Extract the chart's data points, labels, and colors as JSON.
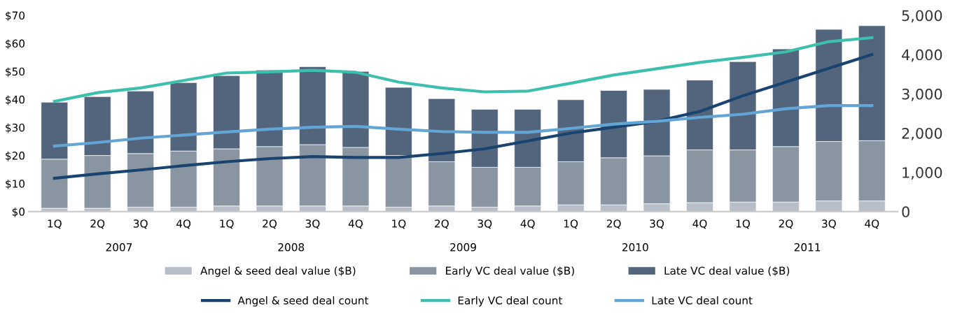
{
  "chart_data": {
    "type": "bar",
    "stacked": true,
    "categories": [
      "1Q",
      "2Q",
      "3Q",
      "4Q",
      "1Q",
      "2Q",
      "3Q",
      "4Q",
      "1Q",
      "2Q",
      "3Q",
      "4Q",
      "1Q",
      "2Q",
      "3Q",
      "4Q",
      "1Q",
      "2Q",
      "3Q",
      "4Q"
    ],
    "annotations": [
      "2007",
      "2008",
      "2009",
      "2010",
      "2011"
    ],
    "series": [
      {
        "name": "Angel & seed deal value ($B)",
        "color": "#b7bec8",
        "values": [
          1.2,
          1.2,
          1.6,
          1.6,
          2.0,
          2.0,
          2.0,
          2.0,
          1.6,
          2.0,
          1.6,
          2.0,
          2.4,
          2.4,
          2.8,
          3.2,
          3.4,
          3.4,
          3.8,
          3.8
        ]
      },
      {
        "name": "Early VC deal value ($B)",
        "color": "#8a95a2",
        "values": [
          17.5,
          18.8,
          19.1,
          20.0,
          20.4,
          21.2,
          21.9,
          20.9,
          18.4,
          15.8,
          14.2,
          13.8,
          15.4,
          16.8,
          17.1,
          18.8,
          18.6,
          19.8,
          21.2,
          21.5
        ]
      },
      {
        "name": "Late VC deal value ($B)",
        "color": "#52657d",
        "values": [
          20.3,
          21.0,
          22.3,
          24.4,
          26.1,
          27.3,
          27.8,
          27.1,
          24.3,
          22.5,
          20.7,
          20.7,
          22.1,
          24.0,
          23.7,
          24.9,
          31.5,
          34.8,
          40.0,
          41.0
        ]
      },
      {
        "name": "Angel & seed deal count",
        "type": "line",
        "axis": "y2",
        "color": "#1a4470",
        "values": [
          850,
          960,
          1060,
          1170,
          1270,
          1350,
          1400,
          1380,
          1380,
          1480,
          1600,
          1800,
          2000,
          2150,
          2300,
          2550,
          2950,
          3300,
          3650,
          4000
        ]
      },
      {
        "name": "Early VC deal count",
        "type": "line",
        "axis": "y2",
        "color": "#3dbfad",
        "values": [
          2810,
          3030,
          3150,
          3340,
          3530,
          3560,
          3600,
          3550,
          3300,
          3150,
          3050,
          3070,
          3270,
          3480,
          3640,
          3800,
          3930,
          4070,
          4330,
          4430
        ]
      },
      {
        "name": "Late VC deal count",
        "type": "line",
        "axis": "y2",
        "color": "#63a5d4",
        "values": [
          1670,
          1760,
          1870,
          1950,
          2030,
          2100,
          2150,
          2170,
          2100,
          2040,
          2020,
          2020,
          2120,
          2230,
          2300,
          2400,
          2480,
          2620,
          2700,
          2700
        ]
      }
    ],
    "ylim": [
      0,
      70
    ],
    "yticks": [
      {
        "value": 0,
        "label": "$0"
      },
      {
        "value": 10,
        "label": "$10"
      },
      {
        "value": 20,
        "label": "$20"
      },
      {
        "value": 30,
        "label": "$30"
      },
      {
        "value": 40,
        "label": "$40"
      },
      {
        "value": 50,
        "label": "$50"
      },
      {
        "value": 60,
        "label": "$60"
      },
      {
        "value": 70,
        "label": "$70"
      }
    ],
    "y2lim": [
      0,
      5000
    ],
    "y2ticks": [
      {
        "value": 0,
        "label": "0"
      },
      {
        "value": 1000,
        "label": "1,000"
      },
      {
        "value": 2000,
        "label": "2,000"
      },
      {
        "value": 3000,
        "label": "3,000"
      },
      {
        "value": 4000,
        "label": "4,000"
      },
      {
        "value": 5000,
        "label": "5,000"
      }
    ],
    "legend": "bottom",
    "grid": false,
    "marker": "none",
    "line_style": "solid"
  }
}
